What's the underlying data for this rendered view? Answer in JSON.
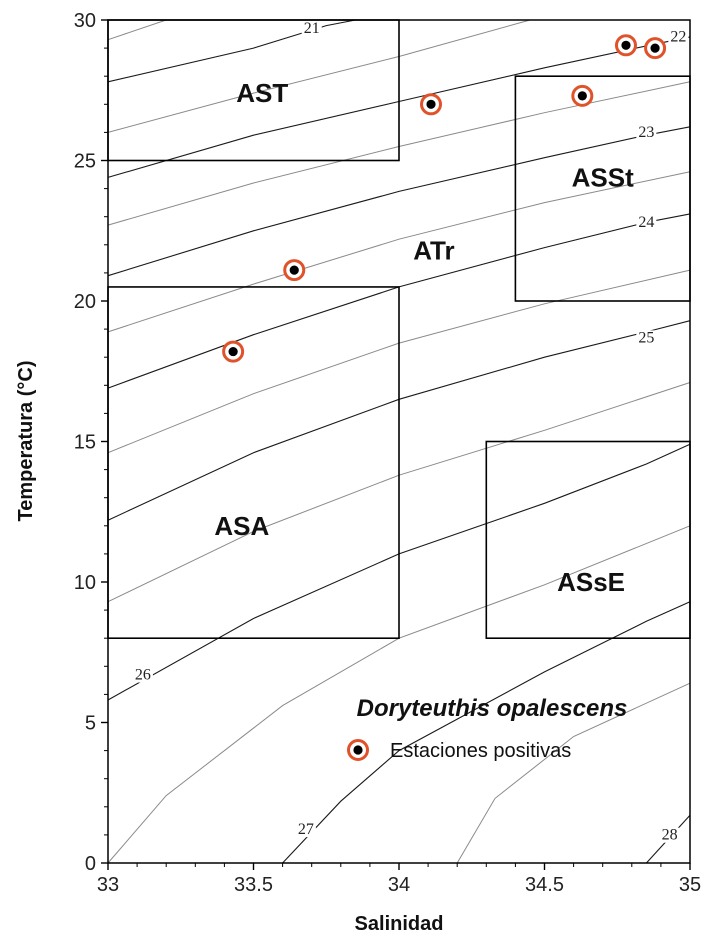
{
  "chart_data": {
    "type": "scatter",
    "xlabel": "Salinidad",
    "ylabel": "Temperatura (°C)",
    "xlim": [
      33,
      35
    ],
    "ylim": [
      0,
      30
    ],
    "x_ticks": [
      "33",
      "33.5",
      "34",
      "34.5",
      "35"
    ],
    "y_ticks": [
      "0",
      "5",
      "10",
      "15",
      "20",
      "25",
      "30"
    ],
    "grid": false,
    "legend_position": "bottom-right",
    "legend": {
      "title": "Doryteuthis opalescens",
      "items": [
        {
          "label": "Estaciones positivas",
          "marker_ring": "#e0522a",
          "marker_fill": "#000000"
        }
      ]
    },
    "series": [
      {
        "name": "Estaciones positivas",
        "points": [
          {
            "x": 33.43,
            "y": 18.2
          },
          {
            "x": 33.64,
            "y": 21.1
          },
          {
            "x": 34.11,
            "y": 27.0
          },
          {
            "x": 34.63,
            "y": 27.3
          },
          {
            "x": 34.78,
            "y": 29.1
          },
          {
            "x": 34.88,
            "y": 29.0
          }
        ]
      }
    ],
    "water_masses": [
      {
        "label": "AST",
        "s_min": 33.0,
        "s_max": 34.0,
        "t_min": 25.0,
        "t_max": 30.0,
        "label_s": 33.53,
        "label_t": 27.4
      },
      {
        "label": "ATr",
        "s_min": null,
        "s_max": null,
        "t_min": null,
        "t_max": null,
        "label_s": 34.12,
        "label_t": 21.8
      },
      {
        "label": "ASSt",
        "s_min": 34.4,
        "s_max": 35.0,
        "t_min": 20.0,
        "t_max": 28.0,
        "label_s": 34.7,
        "label_t": 24.4
      },
      {
        "label": "ASA",
        "s_min": 33.0,
        "s_max": 34.0,
        "t_min": 8.0,
        "t_max": 20.5,
        "label_s": 33.46,
        "label_t": 12.0
      },
      {
        "label": "ASsE",
        "s_min": 34.3,
        "s_max": 35.0,
        "t_min": 8.0,
        "t_max": 15.0,
        "label_s": 34.66,
        "label_t": 10.0
      }
    ],
    "isopycnals": {
      "labels": [
        {
          "text": "21",
          "s": 33.7,
          "t": 29.6
        },
        {
          "text": "22",
          "s": 34.96,
          "t": 29.3
        },
        {
          "text": "23",
          "s": 34.85,
          "t": 25.9
        },
        {
          "text": "24",
          "s": 34.85,
          "t": 22.7
        },
        {
          "text": "25",
          "s": 34.85,
          "t": 18.6
        },
        {
          "text": "26",
          "s": 33.12,
          "t": 6.6
        },
        {
          "text": "27",
          "s": 33.68,
          "t": 1.1
        },
        {
          "text": "28",
          "s": 34.93,
          "t": 0.9
        }
      ],
      "major": [
        [
          [
            33.0,
            27.8
          ],
          [
            33.5,
            29.0
          ],
          [
            33.75,
            29.8
          ],
          [
            33.85,
            30.0
          ]
        ],
        [
          [
            33.0,
            24.4
          ],
          [
            33.5,
            25.9
          ],
          [
            34.0,
            27.1
          ],
          [
            34.5,
            28.3
          ],
          [
            34.86,
            29.1
          ],
          [
            35.0,
            29.4
          ]
        ],
        [
          [
            33.0,
            20.9
          ],
          [
            33.5,
            22.5
          ],
          [
            34.0,
            23.9
          ],
          [
            34.5,
            25.1
          ],
          [
            34.85,
            25.9
          ],
          [
            35.0,
            26.2
          ]
        ],
        [
          [
            33.0,
            16.9
          ],
          [
            33.5,
            18.8
          ],
          [
            34.0,
            20.5
          ],
          [
            34.5,
            21.9
          ],
          [
            34.85,
            22.8
          ],
          [
            35.0,
            23.1
          ]
        ],
        [
          [
            33.0,
            12.2
          ],
          [
            33.5,
            14.6
          ],
          [
            34.0,
            16.5
          ],
          [
            34.5,
            18.0
          ],
          [
            34.85,
            18.9
          ],
          [
            35.0,
            19.3
          ]
        ],
        [
          [
            33.0,
            5.8
          ],
          [
            33.5,
            8.7
          ],
          [
            34.0,
            11.0
          ],
          [
            34.5,
            12.8
          ],
          [
            34.85,
            14.2
          ],
          [
            35.0,
            14.9
          ]
        ],
        [
          [
            33.6,
            0.0
          ],
          [
            33.8,
            2.2
          ],
          [
            34.0,
            4.0
          ],
          [
            34.5,
            6.8
          ],
          [
            34.85,
            8.6
          ],
          [
            35.0,
            9.3
          ]
        ],
        [
          [
            34.85,
            0.0
          ],
          [
            35.0,
            1.7
          ]
        ]
      ],
      "minor": [
        [
          [
            33.0,
            29.3
          ],
          [
            33.2,
            30.0
          ]
        ],
        [
          [
            33.0,
            26.0
          ],
          [
            33.5,
            27.4
          ],
          [
            34.0,
            28.7
          ],
          [
            34.45,
            30.0
          ]
        ],
        [
          [
            33.0,
            22.7
          ],
          [
            33.5,
            24.2
          ],
          [
            34.0,
            25.5
          ],
          [
            34.5,
            26.7
          ],
          [
            35.0,
            27.8
          ]
        ],
        [
          [
            33.0,
            18.9
          ],
          [
            33.5,
            20.6
          ],
          [
            34.0,
            22.2
          ],
          [
            34.5,
            23.5
          ],
          [
            35.0,
            24.6
          ]
        ],
        [
          [
            33.0,
            14.6
          ],
          [
            33.5,
            16.7
          ],
          [
            34.0,
            18.5
          ],
          [
            34.5,
            19.9
          ],
          [
            35.0,
            21.1
          ]
        ],
        [
          [
            33.0,
            9.3
          ],
          [
            33.5,
            11.8
          ],
          [
            34.0,
            13.8
          ],
          [
            34.5,
            15.4
          ],
          [
            35.0,
            17.1
          ]
        ],
        [
          [
            33.0,
            0.0
          ],
          [
            33.2,
            2.4
          ],
          [
            33.6,
            5.6
          ],
          [
            34.0,
            8.0
          ],
          [
            34.5,
            9.9
          ],
          [
            35.0,
            12.0
          ]
        ],
        [
          [
            34.2,
            0.0
          ],
          [
            34.33,
            2.3
          ],
          [
            34.6,
            4.5
          ],
          [
            35.0,
            6.4
          ]
        ]
      ]
    }
  }
}
